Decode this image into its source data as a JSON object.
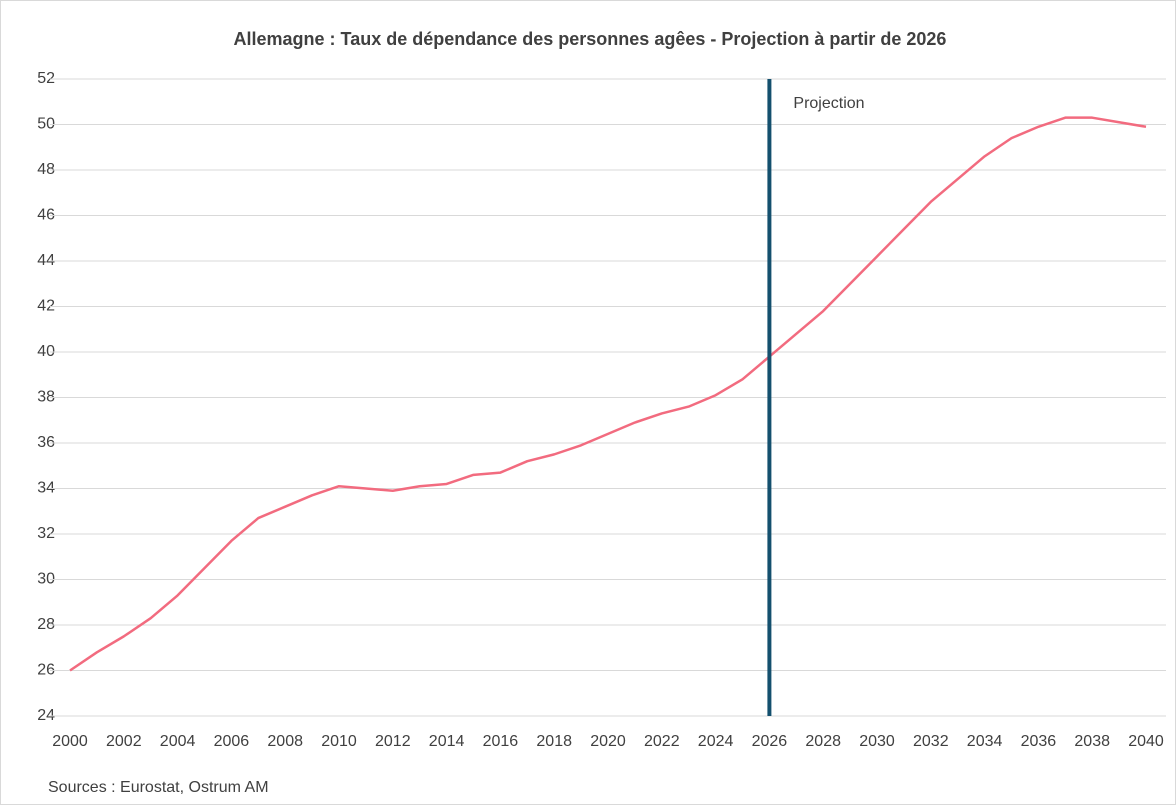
{
  "chart_data": {
    "type": "line",
    "title": "Allemagne : Taux de dépendance des personnes agêes - Projection à partir de 2026",
    "source": "Sources : Eurostat, Ostrum AM",
    "x": [
      2000,
      2001,
      2002,
      2003,
      2004,
      2005,
      2006,
      2007,
      2008,
      2009,
      2010,
      2011,
      2012,
      2013,
      2014,
      2015,
      2016,
      2017,
      2018,
      2019,
      2020,
      2021,
      2022,
      2023,
      2024,
      2025,
      2026,
      2027,
      2028,
      2029,
      2030,
      2031,
      2032,
      2033,
      2034,
      2035,
      2036,
      2037,
      2038,
      2039,
      2040
    ],
    "series": [
      {
        "name": "Taux de dépendance",
        "color": "#f26b7f",
        "values": [
          26.0,
          26.8,
          27.5,
          28.3,
          29.3,
          30.5,
          31.7,
          32.7,
          33.2,
          33.7,
          34.1,
          34.0,
          33.9,
          34.1,
          34.2,
          34.6,
          34.7,
          35.2,
          35.5,
          35.9,
          36.4,
          36.9,
          37.3,
          37.6,
          38.1,
          38.8,
          39.8,
          40.8,
          41.8,
          43.0,
          44.2,
          45.4,
          46.6,
          47.6,
          48.6,
          49.4,
          49.9,
          50.3,
          50.3,
          50.1,
          49.9
        ]
      }
    ],
    "projection": {
      "x": 2026,
      "label": "Projection",
      "color": "#14506e"
    },
    "xlim": [
      2000,
      2040
    ],
    "xticks": [
      2000,
      2002,
      2004,
      2006,
      2008,
      2010,
      2012,
      2014,
      2016,
      2018,
      2020,
      2022,
      2024,
      2026,
      2028,
      2030,
      2032,
      2034,
      2036,
      2038,
      2040
    ],
    "ylim": [
      24,
      52
    ],
    "yticks": [
      24,
      26,
      28,
      30,
      32,
      34,
      36,
      38,
      40,
      42,
      44,
      46,
      48,
      50,
      52
    ],
    "grid": true
  }
}
